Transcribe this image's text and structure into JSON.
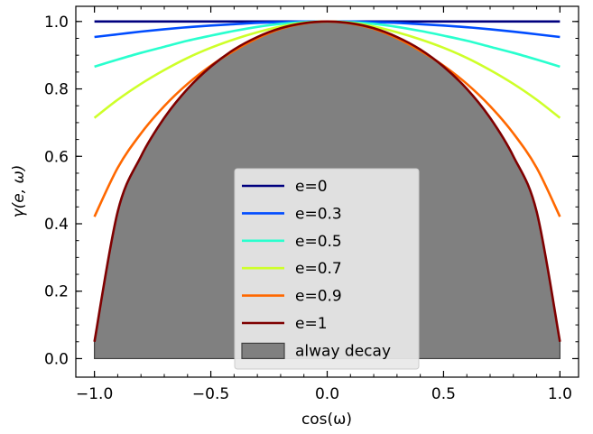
{
  "chart_data": {
    "type": "line",
    "title": "",
    "xlabel": "cos(ω)",
    "ylabel": "γ(e, ω)",
    "xlim": [
      -1.08,
      1.08
    ],
    "ylim": [
      -0.055,
      1.045
    ],
    "xticks": [
      -1.0,
      -0.5,
      0.0,
      0.5,
      1.0
    ],
    "xtick_labels": [
      "−1.0",
      "−0.5",
      "0.0",
      "0.5",
      "1.0"
    ],
    "yticks": [
      0.0,
      0.2,
      0.4,
      0.6,
      0.8,
      1.0
    ],
    "ytick_labels": [
      "0.0",
      "0.2",
      "0.4",
      "0.6",
      "0.8",
      "1.0"
    ],
    "grid": false,
    "legend_position": "bottom-center",
    "x": [
      -1.0,
      -0.9,
      -0.8,
      -0.7,
      -0.6,
      -0.5,
      -0.4,
      -0.3,
      -0.2,
      -0.1,
      0.0,
      0.1,
      0.2,
      0.3,
      0.4,
      0.5,
      0.6,
      0.7,
      0.8,
      0.9,
      1.0
    ],
    "series": [
      {
        "name": "e=0",
        "color": "#00007f",
        "values": [
          1.0,
          1.0,
          1.0,
          1.0,
          1.0,
          1.0,
          1.0,
          1.0,
          1.0,
          1.0,
          1.0,
          1.0,
          1.0,
          1.0,
          1.0,
          1.0,
          1.0,
          1.0,
          1.0,
          1.0,
          1.0
        ]
      },
      {
        "name": "e=0.3",
        "color": "#004cff",
        "values": [
          0.954,
          0.962,
          0.97,
          0.977,
          0.983,
          0.988,
          0.992,
          0.996,
          0.998,
          1.0,
          1.0,
          1.0,
          0.998,
          0.996,
          0.992,
          0.988,
          0.983,
          0.977,
          0.97,
          0.962,
          0.954
        ]
      },
      {
        "name": "e=0.5",
        "color": "#29ffce",
        "values": [
          0.866,
          0.887,
          0.907,
          0.925,
          0.943,
          0.958,
          0.972,
          0.984,
          0.993,
          0.998,
          1.0,
          0.998,
          0.993,
          0.984,
          0.972,
          0.958,
          0.943,
          0.925,
          0.907,
          0.887,
          0.866
        ]
      },
      {
        "name": "e=0.7",
        "color": "#ceff29",
        "values": [
          0.714,
          0.768,
          0.815,
          0.856,
          0.892,
          0.922,
          0.947,
          0.968,
          0.985,
          0.996,
          1.0,
          0.996,
          0.985,
          0.968,
          0.947,
          0.922,
          0.892,
          0.856,
          0.815,
          0.768,
          0.714
        ]
      },
      {
        "name": "e=0.9",
        "color": "#ff6800",
        "values": [
          0.421,
          0.566,
          0.668,
          0.749,
          0.815,
          0.869,
          0.913,
          0.95,
          0.978,
          0.994,
          1.0,
          0.994,
          0.978,
          0.95,
          0.913,
          0.869,
          0.815,
          0.749,
          0.668,
          0.566,
          0.421
        ]
      },
      {
        "name": "e=1",
        "color": "#7f0000",
        "values": [
          0.05,
          0.436,
          0.6,
          0.714,
          0.8,
          0.866,
          0.917,
          0.954,
          0.98,
          0.995,
          1.0,
          0.995,
          0.98,
          0.954,
          0.917,
          0.866,
          0.8,
          0.714,
          0.6,
          0.436,
          0.05
        ]
      }
    ],
    "fill": {
      "name": "alway decay",
      "color": "#808080",
      "edge_color": "#404040",
      "x": [
        -1.0,
        -0.9,
        -0.8,
        -0.7,
        -0.6,
        -0.5,
        -0.4,
        -0.3,
        -0.2,
        -0.1,
        0.0,
        0.1,
        0.2,
        0.3,
        0.4,
        0.5,
        0.6,
        0.7,
        0.8,
        0.9,
        1.0
      ],
      "upper": [
        0.05,
        0.436,
        0.6,
        0.714,
        0.8,
        0.866,
        0.917,
        0.954,
        0.98,
        0.995,
        1.0,
        0.995,
        0.98,
        0.954,
        0.917,
        0.866,
        0.8,
        0.714,
        0.6,
        0.436,
        0.05
      ],
      "lower": 0.0
    }
  }
}
